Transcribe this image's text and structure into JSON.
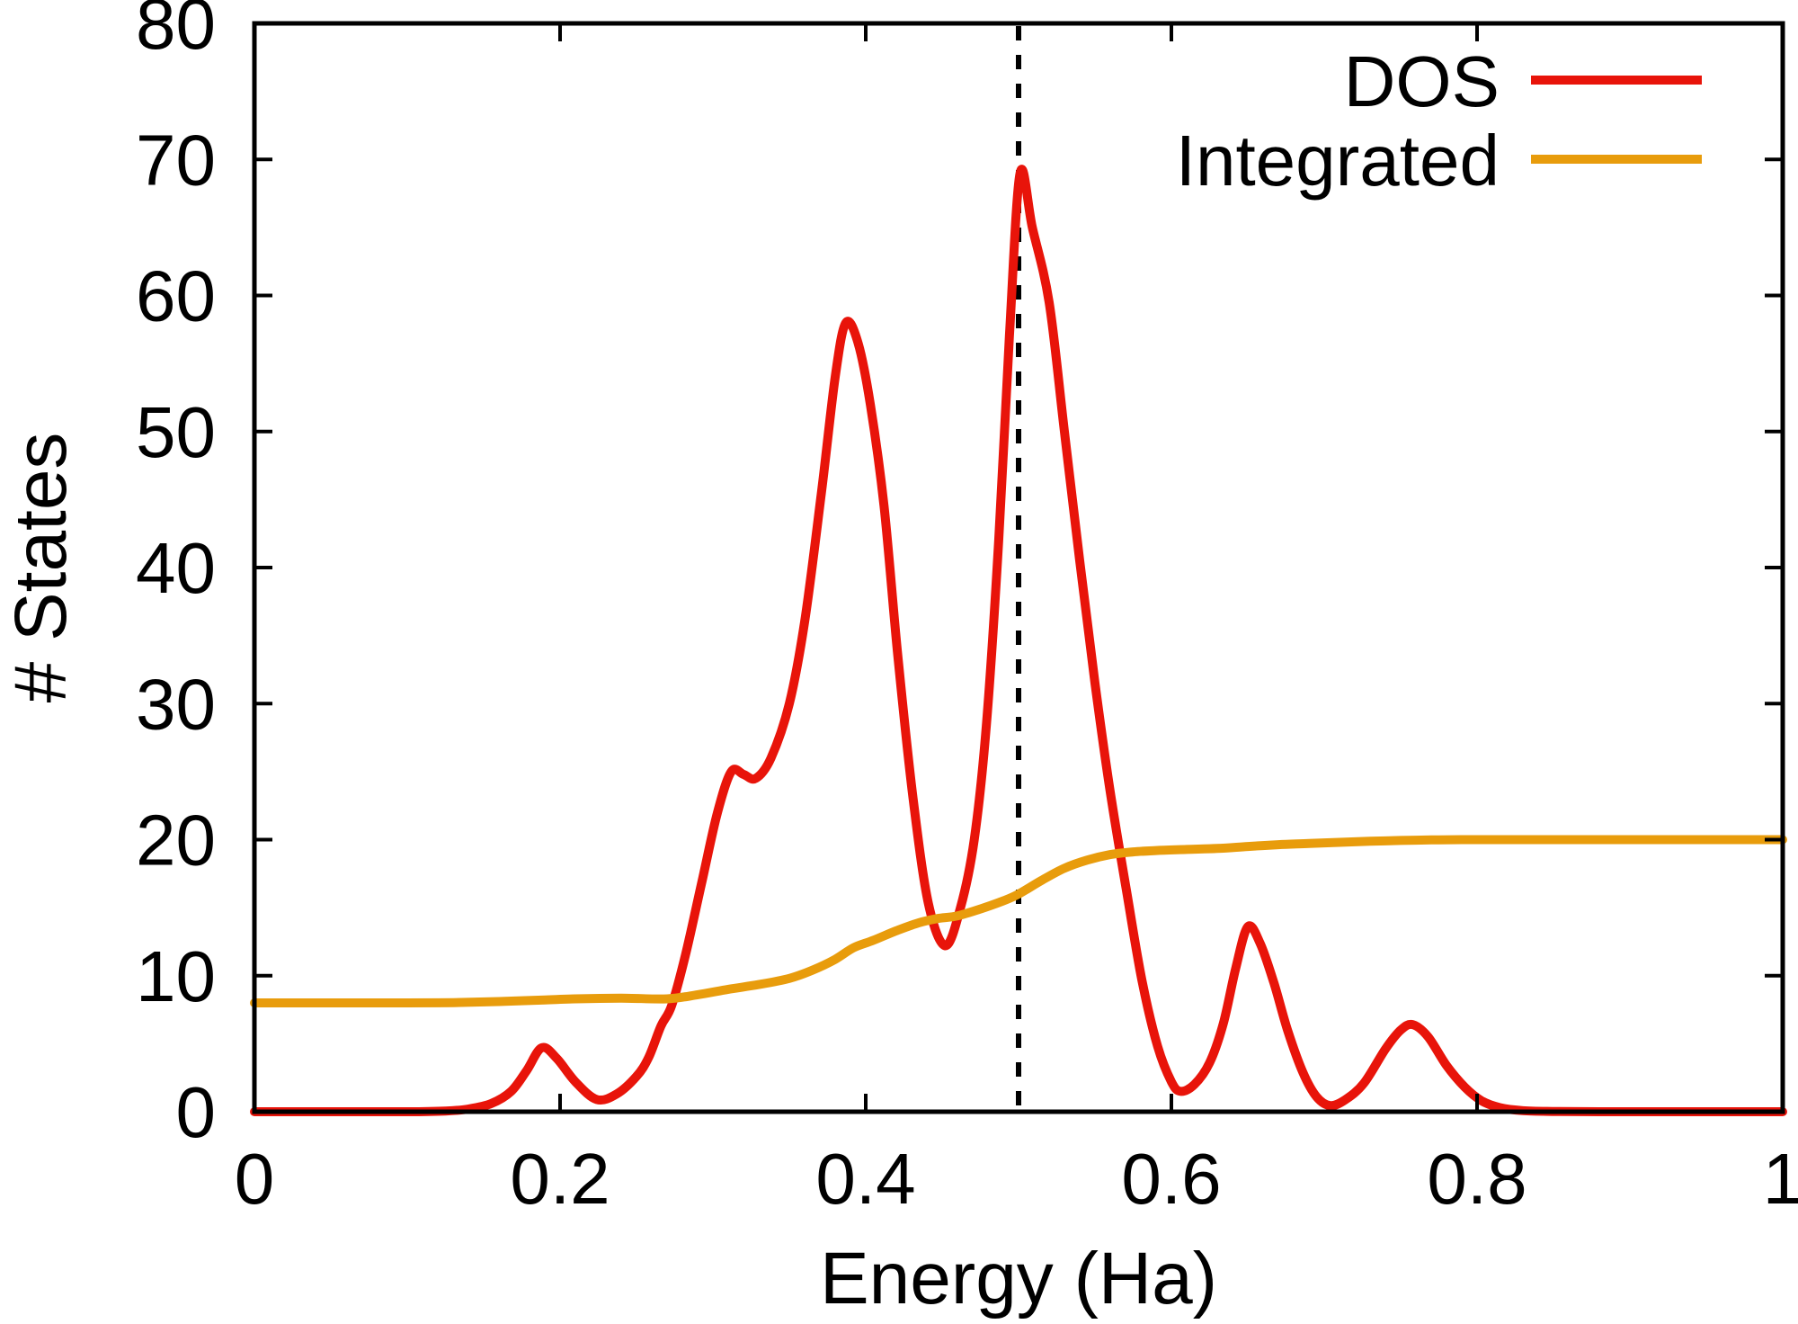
{
  "figure": {
    "background": "#ffffff",
    "axis_color": "#000000",
    "text_color": "#000000"
  },
  "chart_data": {
    "type": "line",
    "title": "",
    "xlabel": "Energy (Ha)",
    "ylabel": "# States",
    "xlim": [
      0,
      1
    ],
    "ylim": [
      0,
      80
    ],
    "grid": false,
    "axes_style": {
      "box": true,
      "tick_direction": "in",
      "ticks_mirrored": true
    },
    "xticks": {
      "values": [
        0,
        0.2,
        0.4,
        0.6,
        0.8,
        1
      ],
      "labels": [
        "0",
        "0.2",
        "0.4",
        "0.6",
        "0.8",
        "1"
      ]
    },
    "yticks": {
      "values": [
        0,
        10,
        20,
        30,
        40,
        50,
        60,
        70,
        80
      ],
      "labels": [
        "0",
        "10",
        "20",
        "30",
        "40",
        "50",
        "60",
        "70",
        "80"
      ]
    },
    "legend": {
      "position": "top-right",
      "entries": [
        {
          "label": "DOS",
          "color": "#e8140a"
        },
        {
          "label": "Integrated",
          "color": "#e89c0c"
        }
      ]
    },
    "annotations": [
      {
        "type": "vline",
        "x": 0.5,
        "style": "dashed",
        "color": "#000000"
      }
    ],
    "series": [
      {
        "name": "DOS",
        "color": "#e8140a",
        "points": [
          [
            0.0,
            0
          ],
          [
            0.06,
            0
          ],
          [
            0.1,
            0
          ],
          [
            0.125,
            0.05
          ],
          [
            0.14,
            0.2
          ],
          [
            0.155,
            0.6
          ],
          [
            0.168,
            1.5
          ],
          [
            0.178,
            3.0
          ],
          [
            0.188,
            4.7
          ],
          [
            0.198,
            3.9
          ],
          [
            0.21,
            2.2
          ],
          [
            0.224,
            0.9
          ],
          [
            0.237,
            1.3
          ],
          [
            0.25,
            2.6
          ],
          [
            0.258,
            4.0
          ],
          [
            0.266,
            6.3
          ],
          [
            0.273,
            7.8
          ],
          [
            0.282,
            11.5
          ],
          [
            0.293,
            17.0
          ],
          [
            0.303,
            22.0
          ],
          [
            0.312,
            25.0
          ],
          [
            0.32,
            24.8
          ],
          [
            0.328,
            24.5
          ],
          [
            0.338,
            26.0
          ],
          [
            0.35,
            30.0
          ],
          [
            0.36,
            36.0
          ],
          [
            0.371,
            45.5
          ],
          [
            0.38,
            54.0
          ],
          [
            0.387,
            58.0
          ],
          [
            0.395,
            56.5
          ],
          [
            0.403,
            52.0
          ],
          [
            0.412,
            44.5
          ],
          [
            0.421,
            33.5
          ],
          [
            0.431,
            23.0
          ],
          [
            0.441,
            15.3
          ],
          [
            0.452,
            12.2
          ],
          [
            0.462,
            15.0
          ],
          [
            0.471,
            20.0
          ],
          [
            0.479,
            28.5
          ],
          [
            0.487,
            42.0
          ],
          [
            0.494,
            57.0
          ],
          [
            0.501,
            69.0
          ],
          [
            0.509,
            65.0
          ],
          [
            0.52,
            59.5
          ],
          [
            0.53,
            50.0
          ],
          [
            0.54,
            40.5
          ],
          [
            0.55,
            31.5
          ],
          [
            0.56,
            23.5
          ],
          [
            0.571,
            16.0
          ],
          [
            0.581,
            9.5
          ],
          [
            0.591,
            4.8
          ],
          [
            0.6,
            2.2
          ],
          [
            0.606,
            1.5
          ],
          [
            0.615,
            2.0
          ],
          [
            0.625,
            3.6
          ],
          [
            0.634,
            6.5
          ],
          [
            0.642,
            10.5
          ],
          [
            0.65,
            13.6
          ],
          [
            0.658,
            12.4
          ],
          [
            0.667,
            9.5
          ],
          [
            0.676,
            6.0
          ],
          [
            0.686,
            2.9
          ],
          [
            0.695,
            1.1
          ],
          [
            0.704,
            0.45
          ],
          [
            0.714,
            0.9
          ],
          [
            0.726,
            2.1
          ],
          [
            0.74,
            4.6
          ],
          [
            0.75,
            6.0
          ],
          [
            0.758,
            6.4
          ],
          [
            0.768,
            5.5
          ],
          [
            0.78,
            3.4
          ],
          [
            0.792,
            1.8
          ],
          [
            0.803,
            0.8
          ],
          [
            0.815,
            0.3
          ],
          [
            0.83,
            0.08
          ],
          [
            0.85,
            0.02
          ],
          [
            0.88,
            0
          ],
          [
            0.94,
            0
          ],
          [
            1.0,
            0
          ]
        ]
      },
      {
        "name": "Integrated",
        "color": "#e89c0c",
        "points": [
          [
            0.0,
            8.0
          ],
          [
            0.05,
            8.0
          ],
          [
            0.1,
            8.0
          ],
          [
            0.13,
            8.02
          ],
          [
            0.16,
            8.1
          ],
          [
            0.19,
            8.22
          ],
          [
            0.21,
            8.3
          ],
          [
            0.24,
            8.35
          ],
          [
            0.27,
            8.3
          ],
          [
            0.29,
            8.6
          ],
          [
            0.31,
            9.0
          ],
          [
            0.33,
            9.35
          ],
          [
            0.35,
            9.8
          ],
          [
            0.365,
            10.4
          ],
          [
            0.38,
            11.2
          ],
          [
            0.392,
            12.05
          ],
          [
            0.405,
            12.6
          ],
          [
            0.42,
            13.3
          ],
          [
            0.435,
            13.9
          ],
          [
            0.447,
            14.2
          ],
          [
            0.46,
            14.4
          ],
          [
            0.475,
            14.9
          ],
          [
            0.49,
            15.5
          ],
          [
            0.5,
            16.0
          ],
          [
            0.515,
            17.0
          ],
          [
            0.53,
            17.9
          ],
          [
            0.545,
            18.5
          ],
          [
            0.56,
            18.9
          ],
          [
            0.575,
            19.1
          ],
          [
            0.59,
            19.2
          ],
          [
            0.61,
            19.28
          ],
          [
            0.63,
            19.35
          ],
          [
            0.65,
            19.5
          ],
          [
            0.67,
            19.63
          ],
          [
            0.69,
            19.72
          ],
          [
            0.71,
            19.8
          ],
          [
            0.73,
            19.88
          ],
          [
            0.75,
            19.94
          ],
          [
            0.77,
            19.98
          ],
          [
            0.79,
            20.0
          ],
          [
            0.85,
            20.0
          ],
          [
            0.92,
            20.0
          ],
          [
            1.0,
            20.0
          ]
        ]
      }
    ]
  }
}
